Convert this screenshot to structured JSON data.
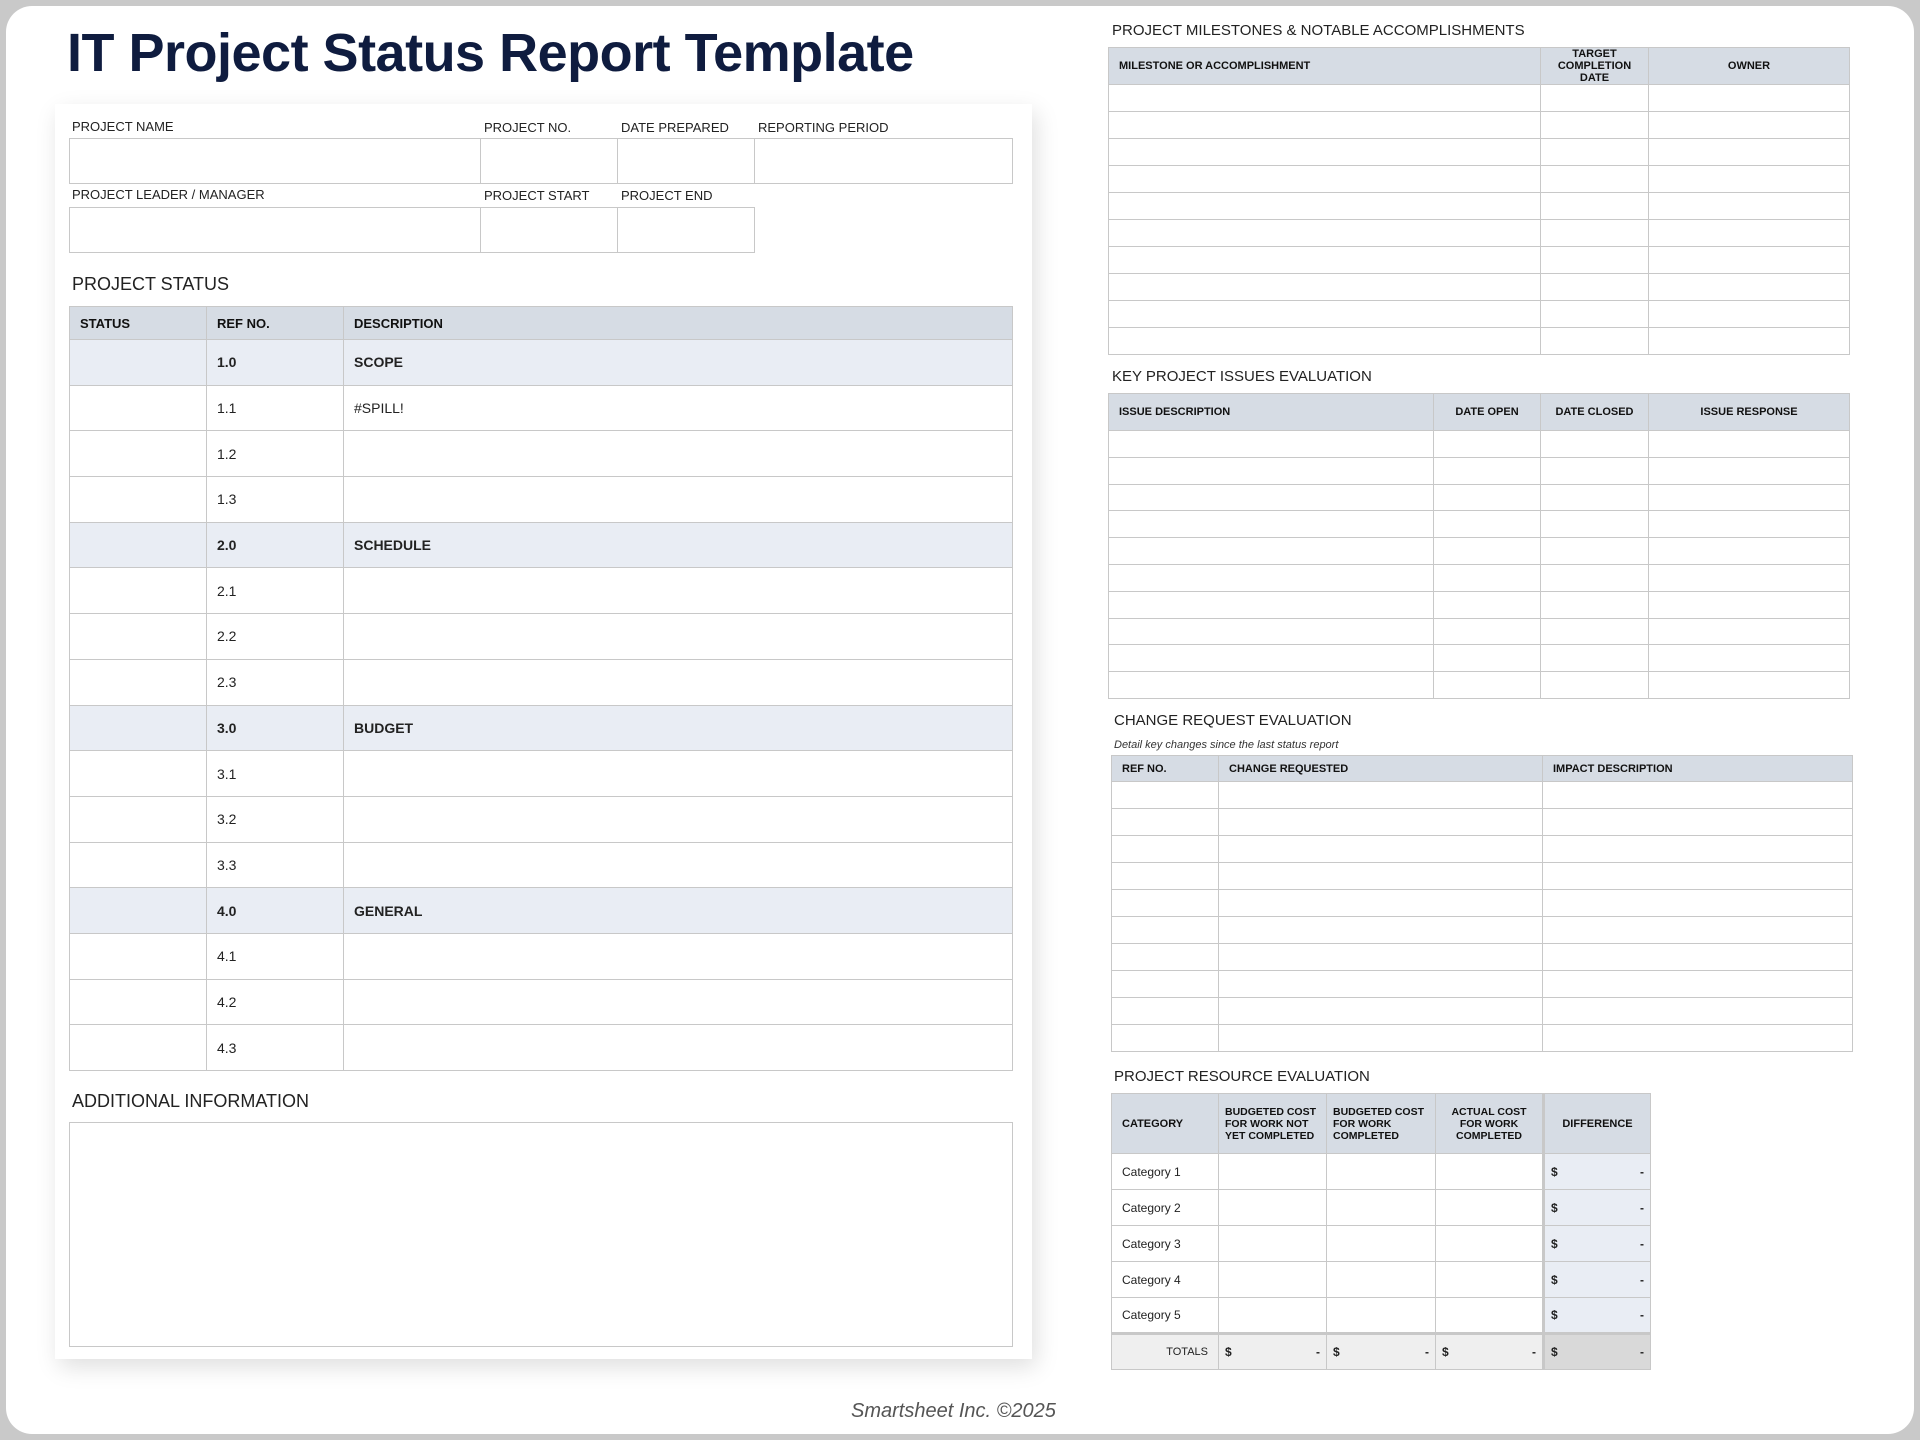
{
  "title": "IT Project Status Report Template",
  "info": {
    "project_name": "PROJECT NAME",
    "project_no": "PROJECT NO.",
    "date_prepared": "DATE PREPARED",
    "reporting_period": "REPORTING PERIOD",
    "leader": "PROJECT LEADER / MANAGER",
    "start": "PROJECT START",
    "end": "PROJECT END"
  },
  "status": {
    "heading": "PROJECT STATUS",
    "columns": [
      "STATUS",
      "REF NO.",
      "DESCRIPTION"
    ],
    "rows": [
      {
        "status": "",
        "ref": "1.0",
        "desc": "SCOPE",
        "section": true
      },
      {
        "status": "",
        "ref": "1.1",
        "desc": "#SPILL!"
      },
      {
        "status": "",
        "ref": "1.2",
        "desc": ""
      },
      {
        "status": "",
        "ref": "1.3",
        "desc": ""
      },
      {
        "status": "",
        "ref": "2.0",
        "desc": "SCHEDULE",
        "section": true
      },
      {
        "status": "",
        "ref": "2.1",
        "desc": ""
      },
      {
        "status": "",
        "ref": "2.2",
        "desc": ""
      },
      {
        "status": "",
        "ref": "2.3",
        "desc": ""
      },
      {
        "status": "",
        "ref": "3.0",
        "desc": "BUDGET",
        "section": true
      },
      {
        "status": "",
        "ref": "3.1",
        "desc": ""
      },
      {
        "status": "",
        "ref": "3.2",
        "desc": ""
      },
      {
        "status": "",
        "ref": "3.3",
        "desc": ""
      },
      {
        "status": "",
        "ref": "4.0",
        "desc": "GENERAL",
        "section": true
      },
      {
        "status": "",
        "ref": "4.1",
        "desc": ""
      },
      {
        "status": "",
        "ref": "4.2",
        "desc": ""
      },
      {
        "status": "",
        "ref": "4.3",
        "desc": ""
      }
    ]
  },
  "additional": {
    "heading": "ADDITIONAL INFORMATION",
    "value": ""
  },
  "milestones": {
    "heading": "PROJECT MILESTONES & NOTABLE ACCOMPLISHMENTS",
    "columns": [
      "MILESTONE OR ACCOMPLISHMENT",
      "TARGET COMPLETION DATE",
      "OWNER"
    ],
    "rows": [
      [
        "",
        "",
        ""
      ],
      [
        "",
        "",
        ""
      ],
      [
        "",
        "",
        ""
      ],
      [
        "",
        "",
        ""
      ],
      [
        "",
        "",
        ""
      ],
      [
        "",
        "",
        ""
      ],
      [
        "",
        "",
        ""
      ],
      [
        "",
        "",
        ""
      ],
      [
        "",
        "",
        ""
      ],
      [
        "",
        "",
        ""
      ]
    ]
  },
  "issues": {
    "heading": "KEY PROJECT ISSUES EVALUATION",
    "columns": [
      "ISSUE DESCRIPTION",
      "DATE OPEN",
      "DATE CLOSED",
      "ISSUE RESPONSE"
    ],
    "rows": [
      [
        "",
        "",
        "",
        ""
      ],
      [
        "",
        "",
        "",
        ""
      ],
      [
        "",
        "",
        "",
        ""
      ],
      [
        "",
        "",
        "",
        ""
      ],
      [
        "",
        "",
        "",
        ""
      ],
      [
        "",
        "",
        "",
        ""
      ],
      [
        "",
        "",
        "",
        ""
      ],
      [
        "",
        "",
        "",
        ""
      ],
      [
        "",
        "",
        "",
        ""
      ],
      [
        "",
        "",
        "",
        ""
      ]
    ]
  },
  "changes": {
    "heading": "CHANGE REQUEST EVALUATION",
    "subtitle": "Detail key changes since the last status report",
    "columns": [
      "REF NO.",
      "CHANGE REQUESTED",
      "IMPACT DESCRIPTION"
    ],
    "rows": [
      [
        "",
        "",
        ""
      ],
      [
        "",
        "",
        ""
      ],
      [
        "",
        "",
        ""
      ],
      [
        "",
        "",
        ""
      ],
      [
        "",
        "",
        ""
      ],
      [
        "",
        "",
        ""
      ],
      [
        "",
        "",
        ""
      ],
      [
        "",
        "",
        ""
      ],
      [
        "",
        "",
        ""
      ],
      [
        "",
        "",
        ""
      ]
    ]
  },
  "resources": {
    "heading": "PROJECT RESOURCE EVALUATION",
    "columns": [
      "CATEGORY",
      "BUDGETED COST FOR WORK NOT YET COMPLETED",
      "BUDGETED COST FOR WORK COMPLETED",
      "ACTUAL COST FOR WORK COMPLETED",
      "DIFFERENCE"
    ],
    "rows": [
      {
        "category": "Category 1",
        "currency": "$",
        "difference": "-"
      },
      {
        "category": "Category 2",
        "currency": "$",
        "difference": "-"
      },
      {
        "category": "Category 3",
        "currency": "$",
        "difference": "-"
      },
      {
        "category": "Category 4",
        "currency": "$",
        "difference": "-"
      },
      {
        "category": "Category 5",
        "currency": "$",
        "difference": "-"
      }
    ],
    "totals": {
      "label": "TOTALS",
      "values": [
        {
          "currency": "$",
          "value": "-"
        },
        {
          "currency": "$",
          "value": "-"
        },
        {
          "currency": "$",
          "value": "-"
        },
        {
          "currency": "$",
          "value": "-"
        }
      ]
    }
  },
  "footer": "Smartsheet Inc. ©2025"
}
